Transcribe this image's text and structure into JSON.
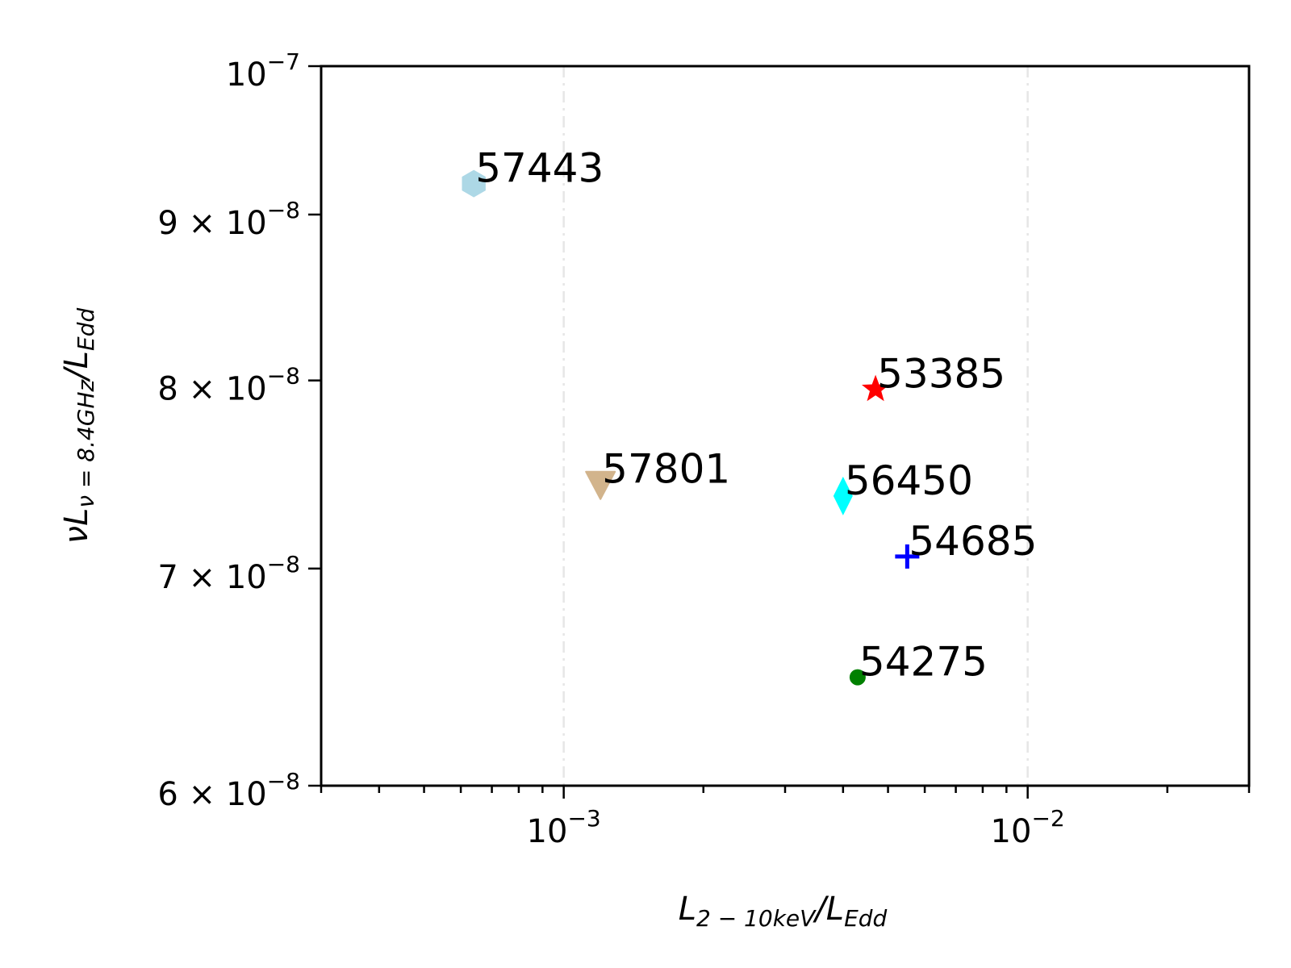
{
  "chart_data": {
    "type": "scatter",
    "xscale": "log",
    "yscale": "log",
    "xlim": [
      0.0003,
      0.03
    ],
    "ylim": [
      6e-08,
      1e-07
    ],
    "grid": "x-major dash-dot",
    "xlabel": {
      "main": "L",
      "sub": "2 − 10keV",
      "slash": "/L",
      "sub2": "Edd"
    },
    "ylabel": {
      "main": "νL",
      "sub": "ν = 8.4GHz",
      "slash": "/L",
      "sub2": "Edd"
    },
    "x_ticks": [
      {
        "value": 0.001,
        "mantissa": "",
        "base": "10",
        "exp": "−3"
      },
      {
        "value": 0.01,
        "mantissa": "",
        "base": "10",
        "exp": "−2"
      }
    ],
    "y_ticks": [
      {
        "value": 1e-07,
        "mantissa": "",
        "base": "10",
        "exp": "−7"
      },
      {
        "value": 9e-08,
        "mantissa": "9 × ",
        "base": "10",
        "exp": "−8"
      },
      {
        "value": 8e-08,
        "mantissa": "8 × ",
        "base": "10",
        "exp": "−8"
      },
      {
        "value": 7e-08,
        "mantissa": "7 × ",
        "base": "10",
        "exp": "−8"
      },
      {
        "value": 6e-08,
        "mantissa": "6 × ",
        "base": "10",
        "exp": "−8"
      }
    ],
    "points": [
      {
        "label": "57443",
        "x": 0.00064,
        "y": 9.2e-08,
        "marker": "hexagon",
        "color": "#add8e6"
      },
      {
        "label": "53385",
        "x": 0.0047,
        "y": 7.95e-08,
        "marker": "star",
        "color": "#ff0000"
      },
      {
        "label": "57801",
        "x": 0.0012,
        "y": 7.43e-08,
        "marker": "triangle-down",
        "color": "#d2b48c"
      },
      {
        "label": "56450",
        "x": 0.004,
        "y": 7.37e-08,
        "marker": "diamond",
        "color": "#00ffff"
      },
      {
        "label": "54685",
        "x": 0.0055,
        "y": 7.06e-08,
        "marker": "plus",
        "color": "#0000ff"
      },
      {
        "label": "54275",
        "x": 0.0043,
        "y": 6.48e-08,
        "marker": "circle",
        "color": "#008000"
      }
    ]
  }
}
